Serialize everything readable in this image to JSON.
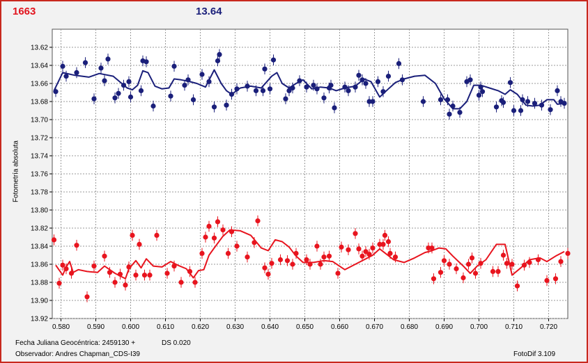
{
  "header": {
    "left_value": "1663",
    "right_value": "13.64"
  },
  "footer": {
    "fecha": "Fecha Juliana Geocéntrica: 2459130 +",
    "ds": "DS 0.020",
    "observer": "Observador: Andres Chapman_CDS-I39",
    "version": "FotoDif 3.109"
  },
  "colors": {
    "frame": "#c8281e",
    "series_blue": "#1a1f7a",
    "series_red": "#e8141e",
    "grid": "#9a9a9a",
    "plot_bg": "#ffffff"
  },
  "chart_data": {
    "type": "scatter",
    "title": "",
    "xlabel": "",
    "ylabel": "Fotometría absoluta",
    "xlim": [
      0.5775,
      0.7255
    ],
    "ylim": [
      13.92,
      13.6
    ],
    "y_inverted": true,
    "grid": true,
    "x_ticks": [
      "0.580",
      "0.590",
      "0.600",
      "0.610",
      "0.620",
      "0.630",
      "0.640",
      "0.650",
      "0.660",
      "0.670",
      "0.680",
      "0.690",
      "0.700",
      "0.710",
      "0.720"
    ],
    "y_ticks": [
      "13.62",
      "13.64",
      "13.66",
      "13.68",
      "13.70",
      "13.72",
      "13.74",
      "13.76",
      "13.78",
      "13.80",
      "13.82",
      "13.84",
      "13.86",
      "13.88",
      "13.90",
      "13.92"
    ],
    "error_bar": 0.006,
    "series": [
      {
        "color": "#1a1f7a",
        "x": [
          0.5785,
          0.5805,
          0.5815,
          0.5845,
          0.587,
          0.5895,
          0.5915,
          0.5925,
          0.5935,
          0.5955,
          0.5965,
          0.598,
          0.5995,
          0.6,
          0.603,
          0.6035,
          0.6045,
          0.6065,
          0.6115,
          0.6125,
          0.6155,
          0.6165,
          0.618,
          0.6205,
          0.6225,
          0.624,
          0.625,
          0.6255,
          0.6275,
          0.629,
          0.6305,
          0.6335,
          0.636,
          0.638,
          0.6385,
          0.64,
          0.641,
          0.6445,
          0.6455,
          0.6465,
          0.6485,
          0.6505,
          0.6525,
          0.6535,
          0.6555,
          0.657,
          0.6575,
          0.6585,
          0.6615,
          0.6625,
          0.6645,
          0.6655,
          0.6665,
          0.6675,
          0.6685,
          0.6695,
          0.671,
          0.6725,
          0.674,
          0.677,
          0.678,
          0.684,
          0.689,
          0.691,
          0.6915,
          0.6925,
          0.6945,
          0.6965,
          0.6975,
          0.7,
          0.7005,
          0.701,
          0.705,
          0.7065,
          0.707,
          0.709,
          0.71,
          0.712,
          0.7125,
          0.714,
          0.716,
          0.718,
          0.7205,
          0.7225,
          0.7235,
          0.7245
        ],
        "y": [
          13.669,
          13.641,
          13.652,
          13.648,
          13.637,
          13.677,
          13.643,
          13.657,
          13.633,
          13.676,
          13.671,
          13.662,
          13.658,
          13.675,
          13.668,
          13.635,
          13.636,
          13.685,
          13.674,
          13.641,
          13.662,
          13.656,
          13.678,
          13.65,
          13.658,
          13.686,
          13.635,
          13.628,
          13.684,
          13.672,
          13.666,
          13.663,
          13.668,
          13.668,
          13.644,
          13.666,
          13.634,
          13.677,
          13.668,
          13.665,
          13.657,
          13.664,
          13.662,
          13.666,
          13.676,
          13.665,
          13.662,
          13.687,
          13.664,
          13.668,
          13.664,
          13.651,
          13.656,
          13.66,
          13.68,
          13.68,
          13.658,
          13.669,
          13.652,
          13.638,
          13.656,
          13.68,
          13.678,
          13.678,
          13.694,
          13.685,
          13.692,
          13.658,
          13.656,
          13.673,
          13.664,
          13.669,
          13.686,
          13.679,
          13.681,
          13.659,
          13.69,
          13.69,
          13.678,
          13.68,
          13.682,
          13.684,
          13.689,
          13.668,
          13.68,
          13.682
        ],
        "fit": [
          [
            0.578,
            13.668
          ],
          [
            0.5805,
            13.648
          ],
          [
            0.584,
            13.651
          ],
          [
            0.588,
            13.653
          ],
          [
            0.591,
            13.649
          ],
          [
            0.595,
            13.652
          ],
          [
            0.599,
            13.665
          ],
          [
            0.6005,
            13.667
          ],
          [
            0.602,
            13.662
          ],
          [
            0.6035,
            13.646
          ],
          [
            0.605,
            13.648
          ],
          [
            0.607,
            13.663
          ],
          [
            0.609,
            13.666
          ],
          [
            0.611,
            13.665
          ],
          [
            0.6125,
            13.655
          ],
          [
            0.6145,
            13.656
          ],
          [
            0.617,
            13.658
          ],
          [
            0.619,
            13.66
          ],
          [
            0.6215,
            13.664
          ],
          [
            0.624,
            13.645
          ],
          [
            0.626,
            13.66
          ],
          [
            0.6275,
            13.668
          ],
          [
            0.629,
            13.672
          ],
          [
            0.6315,
            13.665
          ],
          [
            0.6345,
            13.663
          ],
          [
            0.6375,
            13.665
          ],
          [
            0.6405,
            13.652
          ],
          [
            0.642,
            13.648
          ],
          [
            0.6435,
            13.66
          ],
          [
            0.6455,
            13.665
          ],
          [
            0.6475,
            13.66
          ],
          [
            0.6495,
            13.656
          ],
          [
            0.652,
            13.666
          ],
          [
            0.6545,
            13.664
          ],
          [
            0.657,
            13.665
          ],
          [
            0.659,
            13.668
          ],
          [
            0.6615,
            13.665
          ],
          [
            0.6645,
            13.663
          ],
          [
            0.667,
            13.655
          ],
          [
            0.669,
            13.658
          ],
          [
            0.6715,
            13.675
          ],
          [
            0.674,
            13.666
          ],
          [
            0.676,
            13.659
          ],
          [
            0.6785,
            13.655
          ],
          [
            0.6815,
            13.652
          ],
          [
            0.6845,
            13.651
          ],
          [
            0.6875,
            13.66
          ],
          [
            0.69,
            13.677
          ],
          [
            0.6925,
            13.688
          ],
          [
            0.6945,
            13.688
          ],
          [
            0.6965,
            13.68
          ],
          [
            0.6985,
            13.662
          ],
          [
            0.7005,
            13.662
          ],
          [
            0.703,
            13.665
          ],
          [
            0.7055,
            13.668
          ],
          [
            0.7075,
            13.672
          ],
          [
            0.709,
            13.667
          ],
          [
            0.711,
            13.672
          ],
          [
            0.7135,
            13.684
          ],
          [
            0.7155,
            13.685
          ],
          [
            0.7175,
            13.684
          ],
          [
            0.7195,
            13.678
          ],
          [
            0.7215,
            13.678
          ],
          [
            0.7225,
            13.683
          ],
          [
            0.7245,
            13.682
          ]
        ]
      },
      {
        "color": "#e8141e",
        "x": [
          0.578,
          0.5795,
          0.5805,
          0.5815,
          0.583,
          0.5845,
          0.5875,
          0.5895,
          0.5925,
          0.594,
          0.5955,
          0.597,
          0.5985,
          0.5995,
          0.6005,
          0.6015,
          0.6025,
          0.604,
          0.6055,
          0.6075,
          0.6105,
          0.6125,
          0.6145,
          0.617,
          0.6185,
          0.6205,
          0.6215,
          0.6225,
          0.624,
          0.625,
          0.6265,
          0.628,
          0.629,
          0.6305,
          0.6335,
          0.6355,
          0.6365,
          0.6385,
          0.6395,
          0.6405,
          0.643,
          0.645,
          0.6465,
          0.6475,
          0.6505,
          0.6515,
          0.6535,
          0.6545,
          0.6555,
          0.657,
          0.6595,
          0.6605,
          0.6625,
          0.6645,
          0.6655,
          0.6665,
          0.6675,
          0.6685,
          0.6695,
          0.6715,
          0.6725,
          0.673,
          0.674,
          0.6745,
          0.676,
          0.6855,
          0.6865,
          0.687,
          0.689,
          0.69,
          0.6915,
          0.6935,
          0.6955,
          0.697,
          0.698,
          0.699,
          0.7005,
          0.704,
          0.7055,
          0.707,
          0.708,
          0.7095,
          0.711,
          0.713,
          0.7145,
          0.717,
          0.7195,
          0.722,
          0.7235,
          0.7255
        ],
        "y": [
          13.833,
          13.881,
          13.861,
          13.865,
          13.87,
          13.839,
          13.896,
          13.862,
          13.851,
          13.869,
          13.88,
          13.871,
          13.883,
          13.863,
          13.828,
          13.872,
          13.838,
          13.872,
          13.872,
          13.828,
          13.87,
          13.862,
          13.88,
          13.868,
          13.88,
          13.848,
          13.83,
          13.818,
          13.831,
          13.813,
          13.822,
          13.848,
          13.824,
          13.84,
          13.852,
          13.836,
          13.812,
          13.864,
          13.871,
          13.859,
          13.855,
          13.856,
          13.86,
          13.848,
          13.855,
          13.86,
          13.84,
          13.86,
          13.852,
          13.851,
          13.87,
          13.841,
          13.844,
          13.826,
          13.843,
          13.851,
          13.846,
          13.849,
          13.842,
          13.838,
          13.838,
          13.828,
          13.835,
          13.848,
          13.852,
          13.842,
          13.842,
          13.876,
          13.869,
          13.856,
          13.86,
          13.865,
          13.875,
          13.86,
          13.853,
          13.87,
          13.859,
          13.868,
          13.868,
          13.85,
          13.859,
          13.86,
          13.884,
          13.861,
          13.858,
          13.855,
          13.878,
          13.876,
          13.857,
          13.848
        ],
        "fit": [
          [
            0.5785,
            13.861
          ],
          [
            0.5805,
            13.872
          ],
          [
            0.5815,
            13.863
          ],
          [
            0.5825,
            13.857
          ],
          [
            0.5835,
            13.869
          ],
          [
            0.585,
            13.866
          ],
          [
            0.5875,
            13.868
          ],
          [
            0.5905,
            13.869
          ],
          [
            0.5925,
            13.862
          ],
          [
            0.5955,
            13.87
          ],
          [
            0.5985,
            13.876
          ],
          [
            0.5995,
            13.865
          ],
          [
            0.6015,
            13.856
          ],
          [
            0.603,
            13.864
          ],
          [
            0.6045,
            13.854
          ],
          [
            0.6065,
            13.862
          ],
          [
            0.609,
            13.863
          ],
          [
            0.6115,
            13.857
          ],
          [
            0.6135,
            13.861
          ],
          [
            0.616,
            13.865
          ],
          [
            0.618,
            13.875
          ],
          [
            0.6195,
            13.867
          ],
          [
            0.621,
            13.866
          ],
          [
            0.6225,
            13.85
          ],
          [
            0.624,
            13.842
          ],
          [
            0.6265,
            13.829
          ],
          [
            0.6285,
            13.822
          ],
          [
            0.6315,
            13.823
          ],
          [
            0.6345,
            13.828
          ],
          [
            0.6375,
            13.842
          ],
          [
            0.6395,
            13.845
          ],
          [
            0.6415,
            13.833
          ],
          [
            0.6435,
            13.835
          ],
          [
            0.6455,
            13.841
          ],
          [
            0.6475,
            13.851
          ],
          [
            0.6495,
            13.858
          ],
          [
            0.6525,
            13.858
          ],
          [
            0.6555,
            13.856
          ],
          [
            0.658,
            13.857
          ],
          [
            0.6615,
            13.866
          ],
          [
            0.6645,
            13.86
          ],
          [
            0.6675,
            13.854
          ],
          [
            0.6695,
            13.85
          ],
          [
            0.6715,
            13.843
          ],
          [
            0.6735,
            13.849
          ],
          [
            0.6755,
            13.855
          ],
          [
            0.6785,
            13.858
          ],
          [
            0.6815,
            13.853
          ],
          [
            0.6845,
            13.847
          ],
          [
            0.6865,
            13.845
          ],
          [
            0.6885,
            13.842
          ],
          [
            0.6905,
            13.843
          ],
          [
            0.6925,
            13.851
          ],
          [
            0.6955,
            13.862
          ],
          [
            0.6975,
            13.87
          ],
          [
            0.6995,
            13.862
          ],
          [
            0.702,
            13.855
          ],
          [
            0.705,
            13.838
          ],
          [
            0.7075,
            13.838
          ],
          [
            0.7095,
            13.872
          ],
          [
            0.712,
            13.864
          ],
          [
            0.7145,
            13.855
          ],
          [
            0.7175,
            13.853
          ],
          [
            0.7195,
            13.857
          ],
          [
            0.722,
            13.851
          ],
          [
            0.7245,
            13.846
          ]
        ]
      }
    ]
  }
}
